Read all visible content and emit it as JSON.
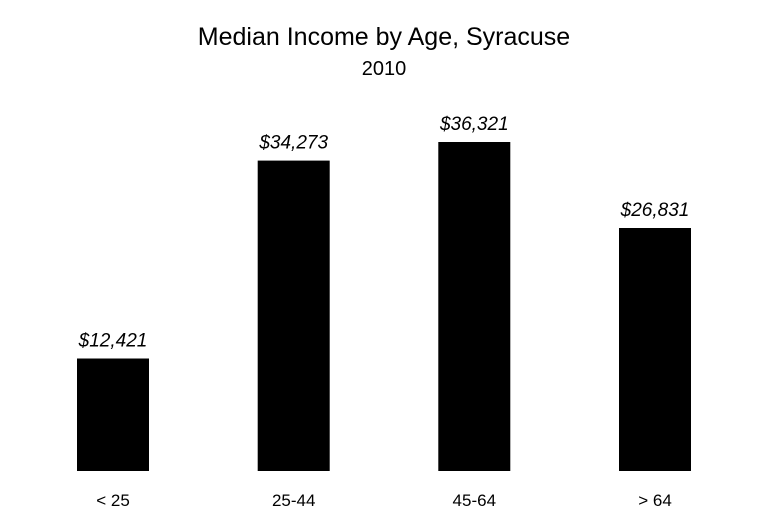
{
  "chart_data": {
    "type": "bar",
    "title": "Median Income by Age, Syracuse",
    "subtitle": "2010",
    "categories": [
      "< 25",
      "25-44",
      "45-64",
      "> 64"
    ],
    "values": [
      12421,
      34273,
      36321,
      26831
    ],
    "data_labels": [
      "$12,421",
      "$34,273",
      "$36,321",
      "$26,831"
    ],
    "xlabel": "",
    "ylabel": "",
    "ylim": [
      0,
      40000
    ],
    "grid": false,
    "legend": "none",
    "bar_color": "#000000"
  }
}
